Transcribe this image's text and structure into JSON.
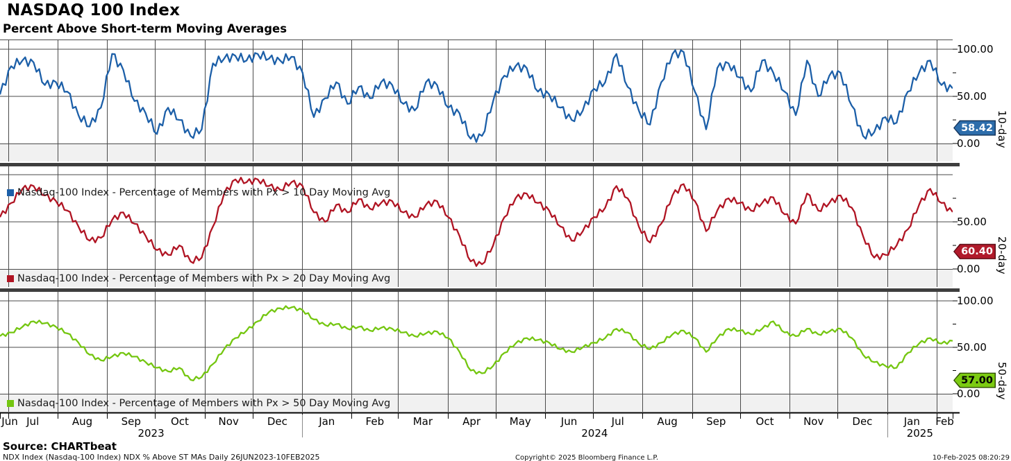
{
  "header": {
    "title": "NASDAQ 100 Index",
    "subtitle": "Percent Above Short-term Moving Averages"
  },
  "footer": {
    "source": "Source: CHARTbeat",
    "meta": "NDX Index (Nasdaq-100 Index) NDX % Above ST MAs  Daily 26JUN2023-10FEB2025",
    "copyright": "Copyright© 2025 Bloomberg Finance L.P.",
    "timestamp": "10-Feb-2025 08:20:29"
  },
  "chart_data": {
    "type": "line",
    "title": "NASDAQ 100 Index - Percent Above Short-term Moving Averages",
    "ylim": [
      0,
      100
    ],
    "grid": true,
    "legend_position": "bottom-left-per-panel",
    "x_range_label": "26JUN2023-10FEB2025",
    "total_days": 596,
    "sample_interval_days": 7,
    "months": [
      {
        "label": "Jun",
        "start": 0,
        "end": 5
      },
      {
        "label": "Jul",
        "start": 5,
        "end": 36
      },
      {
        "label": "Aug",
        "start": 36,
        "end": 67
      },
      {
        "label": "Sep",
        "start": 67,
        "end": 97
      },
      {
        "label": "Oct",
        "start": 97,
        "end": 128
      },
      {
        "label": "Nov",
        "start": 128,
        "end": 158
      },
      {
        "label": "Dec",
        "start": 158,
        "end": 189
      },
      {
        "label": "Jan",
        "start": 189,
        "end": 220
      },
      {
        "label": "Feb",
        "start": 220,
        "end": 249
      },
      {
        "label": "Mar",
        "start": 249,
        "end": 280
      },
      {
        "label": "Apr",
        "start": 280,
        "end": 310
      },
      {
        "label": "May",
        "start": 310,
        "end": 341
      },
      {
        "label": "Jun",
        "start": 341,
        "end": 371
      },
      {
        "label": "Jul",
        "start": 371,
        "end": 402
      },
      {
        "label": "Aug",
        "start": 402,
        "end": 433
      },
      {
        "label": "Sep",
        "start": 433,
        "end": 463
      },
      {
        "label": "Oct",
        "start": 463,
        "end": 494
      },
      {
        "label": "Nov",
        "start": 494,
        "end": 524
      },
      {
        "label": "Dec",
        "start": 524,
        "end": 555
      },
      {
        "label": "Jan",
        "start": 555,
        "end": 586
      },
      {
        "label": "Feb",
        "start": 586,
        "end": 596
      }
    ],
    "years": [
      {
        "label": "2023",
        "start": 0,
        "end": 189
      },
      {
        "label": "2024",
        "start": 189,
        "end": 555
      },
      {
        "label": "2025",
        "start": 555,
        "end": 596
      }
    ],
    "panels": [
      {
        "axis_label": "10-day",
        "legend": "Nasdaq-100 Index - Percentage of Members with Px > 10 Day Moving Avg",
        "color": "#1c5fa8",
        "badge": {
          "label": "58.42",
          "bg": "#2d6dab",
          "border": "#16375e",
          "text_color": "#ffffff"
        },
        "yticks": [
          {
            "v": 100,
            "label": "100.00"
          },
          {
            "v": 50,
            "label": "50.00"
          },
          {
            "v": 0,
            "label": "0.00"
          }
        ],
        "minor_ticks": [
          25,
          75
        ],
        "last_value": 58.42,
        "values": [
          52,
          82,
          88,
          86,
          62,
          65,
          55,
          30,
          18,
          38,
          95,
          78,
          45,
          32,
          10,
          38,
          25,
          8,
          15,
          85,
          90,
          93,
          88,
          95,
          90,
          88,
          92,
          75,
          28,
          48,
          65,
          42,
          60,
          48,
          65,
          62,
          42,
          35,
          65,
          62,
          38,
          32,
          5,
          8,
          45,
          72,
          82,
          80,
          55,
          52,
          38,
          25,
          35,
          58,
          65,
          95,
          60,
          35,
          20,
          65,
          95,
          97,
          55,
          15,
          80,
          85,
          70,
          55,
          88,
          75,
          55,
          30,
          88,
          50,
          72,
          75,
          40,
          8,
          12,
          28,
          22,
          55,
          75,
          88,
          62,
          58.42
        ]
      },
      {
        "axis_label": "20-day",
        "legend": "Nasdaq-100 Index - Percentage of Members with Px > 20 Day Moving Avg",
        "color": "#b01423",
        "badge": {
          "label": "60.40",
          "bg": "#b11a2b",
          "border": "#5c0d16",
          "text_color": "#ffffff"
        },
        "yticks": [
          {
            "v": 50,
            "label": "50.00"
          },
          {
            "v": 0,
            "label": "0.00"
          }
        ],
        "minor_ticks": [
          25,
          75
        ],
        "last_value": 60.4,
        "values": [
          55,
          70,
          85,
          88,
          78,
          72,
          62,
          45,
          30,
          33,
          52,
          60,
          48,
          35,
          20,
          15,
          25,
          8,
          12,
          45,
          80,
          95,
          92,
          95,
          88,
          84,
          92,
          88,
          60,
          50,
          68,
          60,
          74,
          64,
          70,
          72,
          60,
          55,
          68,
          72,
          55,
          35,
          8,
          5,
          25,
          55,
          75,
          80,
          70,
          62,
          45,
          30,
          40,
          55,
          65,
          88,
          75,
          45,
          28,
          48,
          78,
          90,
          72,
          40,
          62,
          75,
          70,
          62,
          70,
          76,
          58,
          48,
          80,
          62,
          70,
          78,
          65,
          35,
          12,
          15,
          25,
          42,
          68,
          85,
          70,
          60.4
        ]
      },
      {
        "axis_label": "50-day",
        "legend": "Nasdaq-100 Index - Percentage of Members with Px > 50 Day Moving Avg",
        "color": "#74c610",
        "badge": {
          "label": "57.00",
          "bg": "#7ccb12",
          "border": "#2f4d03",
          "text_color": "#000000"
        },
        "yticks": [
          {
            "v": 100,
            "label": "100.00"
          },
          {
            "v": 50,
            "label": "50.00"
          },
          {
            "v": 0,
            "label": "0.00"
          }
        ],
        "minor_ticks": [
          25,
          75
        ],
        "last_value": 57.0,
        "values": [
          62,
          66,
          72,
          78,
          76,
          72,
          65,
          55,
          42,
          36,
          40,
          44,
          40,
          34,
          28,
          24,
          28,
          15,
          18,
          32,
          48,
          60,
          68,
          78,
          88,
          92,
          93,
          90,
          80,
          74,
          75,
          70,
          72,
          68,
          71,
          70,
          66,
          62,
          65,
          67,
          60,
          45,
          25,
          22,
          30,
          44,
          54,
          60,
          58,
          55,
          48,
          45,
          50,
          55,
          60,
          70,
          66,
          54,
          48,
          55,
          64,
          68,
          60,
          45,
          60,
          70,
          68,
          64,
          70,
          78,
          66,
          62,
          70,
          64,
          67,
          70,
          60,
          42,
          34,
          30,
          28,
          44,
          54,
          60,
          54,
          57
        ]
      }
    ],
    "style": {
      "gridline_color": "#4a4a4a",
      "divider_color": "#3e3e3e",
      "legend_bg": "#f1f1f1",
      "axis_color": "#000000"
    }
  }
}
